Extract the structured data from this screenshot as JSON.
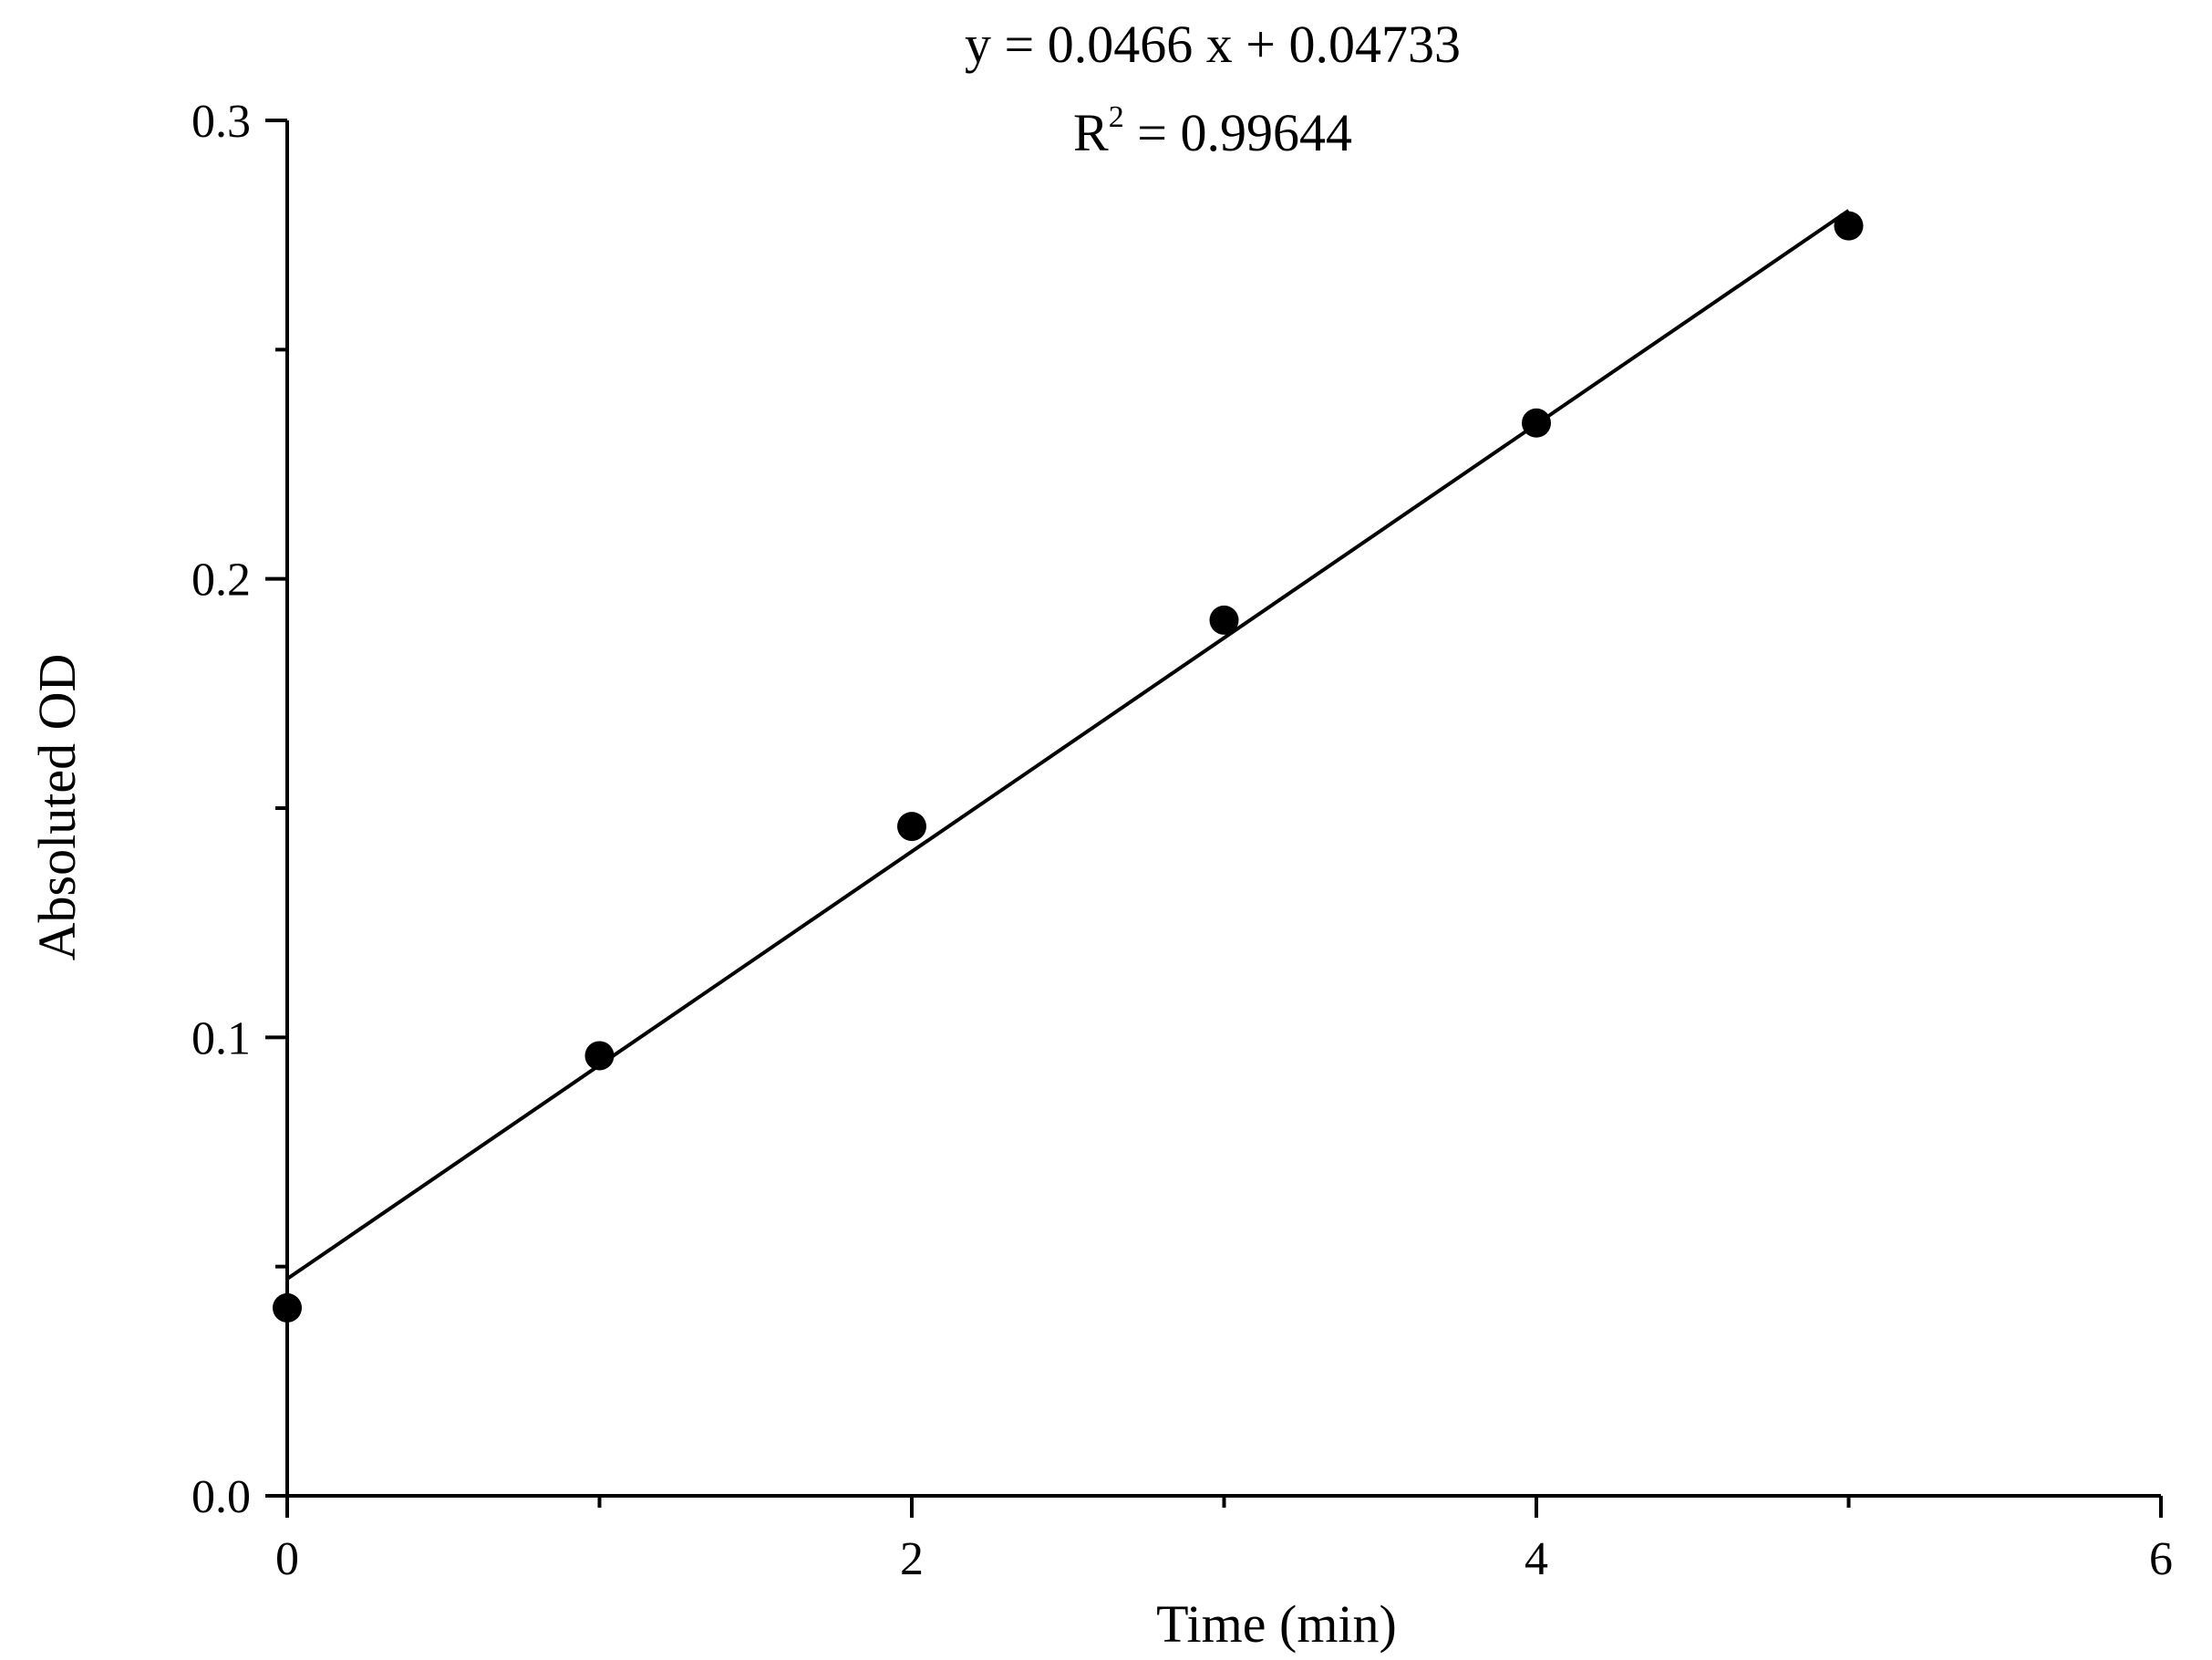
{
  "chart_data": {
    "type": "scatter",
    "title": "",
    "xlabel": "Time (min)",
    "ylabel": "Absoluted OD",
    "xlim": [
      0,
      6
    ],
    "ylim": [
      0,
      0.3
    ],
    "x_ticks": [
      0,
      2,
      4,
      6
    ],
    "x_tick_labels": [
      "0",
      "2",
      "4",
      "6"
    ],
    "x_minor_ticks": [
      1,
      3,
      5
    ],
    "y_ticks": [
      0,
      0.1,
      0.2,
      0.3
    ],
    "y_tick_labels": [
      "0.0",
      "0.1",
      "0.2",
      "0.3"
    ],
    "y_minor_ticks": [
      0.05,
      0.15,
      0.25
    ],
    "grid": false,
    "legend": "none",
    "series": [
      {
        "type": "scatter",
        "x": [
          0,
          1,
          2,
          3,
          4,
          5
        ],
        "y": [
          0.041,
          0.096,
          0.146,
          0.191,
          0.234,
          0.277
        ]
      }
    ],
    "fit": {
      "slope": 0.0466,
      "intercept": 0.04733,
      "x_range": [
        0,
        5
      ]
    },
    "annotations": {
      "equation": "y = 0.0466 x + 0.04733",
      "r2_prefix": "R",
      "r2_sup": "2",
      "r2_value": " = 0.99644"
    },
    "colors": {
      "marker": "#000000",
      "line": "#000000",
      "axis": "#000000"
    }
  }
}
